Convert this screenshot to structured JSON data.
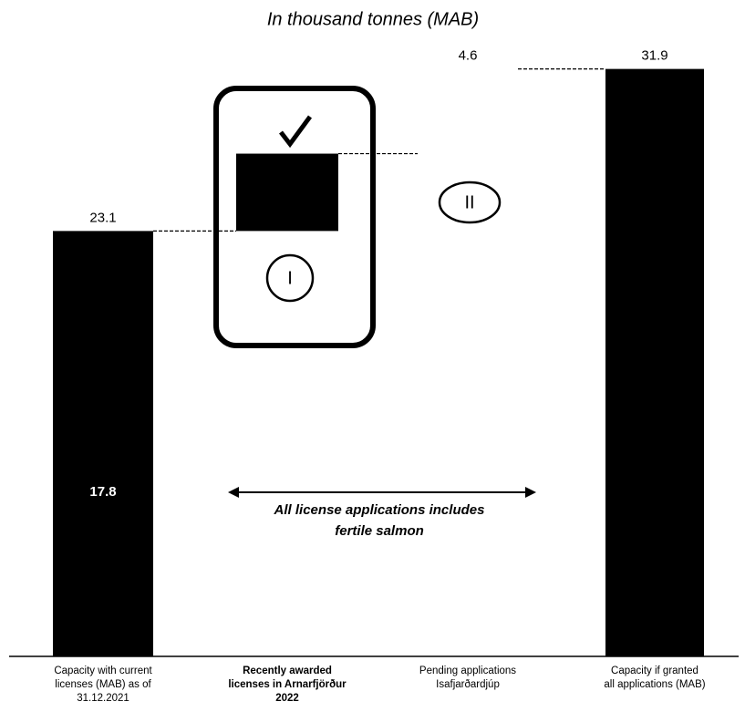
{
  "chart_data": {
    "type": "waterfall",
    "title": "In thousand tonnes (MAB)",
    "categories": [
      [
        "Capacity with current",
        "licenses (MAB) as of",
        "31.12.2021"
      ],
      [
        "Recently awarded",
        "licenses in Arnarfjörður",
        "2022"
      ],
      [
        "Pending applications",
        "Isafjarðardjúp"
      ],
      [
        "Capacity if granted",
        "all applications (MAB)"
      ]
    ],
    "values": [
      23.1,
      4.2,
      4.6,
      31.9
    ],
    "measure": [
      "total",
      "relative",
      "relative",
      "total"
    ],
    "show_value": [
      true,
      false,
      true,
      true
    ],
    "inner_values": [
      17.8,
      null,
      null,
      null
    ],
    "colors": [
      "#000000",
      "#000000",
      "#ffffff",
      "#000000"
    ],
    "ylim": [
      0,
      32
    ],
    "stage_labels": [
      "I",
      "II"
    ],
    "note": [
      "All license applications includes",
      "fertile salmon"
    ]
  }
}
